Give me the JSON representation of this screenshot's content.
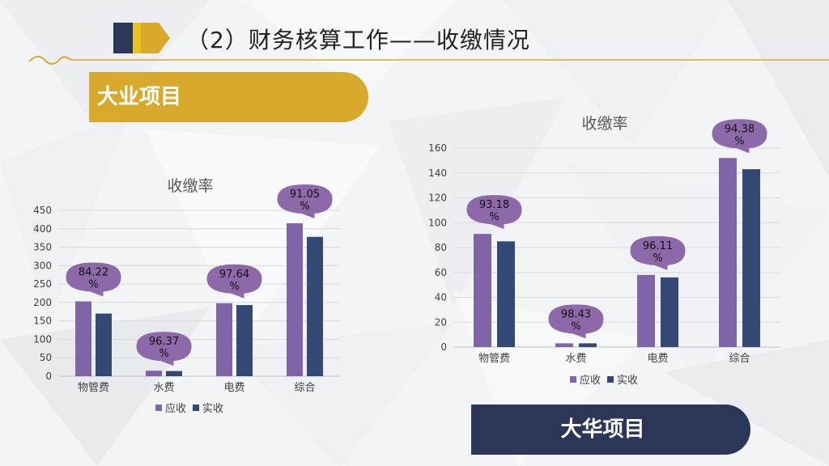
{
  "page": {
    "title": "（2）财务核算工作——收缴情况",
    "colors": {
      "gold": "#d9a92b",
      "navy": "#2b3659",
      "purple": "#8064a8",
      "bar_navy": "#344874",
      "bubble": "#8e69a9"
    }
  },
  "left_panel": {
    "banner": "大业项目"
  },
  "right_panel": {
    "banner": "大华项目"
  },
  "chart_data": [
    {
      "type": "bar",
      "title": "收缴率",
      "categories": [
        "物管费",
        "水费",
        "电费",
        "综合"
      ],
      "series": [
        {
          "name": "应收",
          "values": [
            203,
            15,
            198,
            415
          ]
        },
        {
          "name": "实收",
          "values": [
            170,
            14,
            193,
            378
          ]
        }
      ],
      "ylim": [
        0,
        450
      ],
      "yticks": [
        0,
        50,
        100,
        150,
        200,
        250,
        300,
        350,
        400,
        450
      ],
      "rates": [
        {
          "line1": "84.22",
          "line2": "%"
        },
        {
          "line1": "96.37",
          "line2": "%"
        },
        {
          "line1": "97.64",
          "line2": "%"
        },
        {
          "line1": "91.05",
          "line2": "%"
        }
      ],
      "legend": [
        "应收",
        "实收"
      ],
      "legend_position": "bottom"
    },
    {
      "type": "bar",
      "title": "收缴率",
      "categories": [
        "物管费",
        "水费",
        "电费",
        "综合"
      ],
      "series": [
        {
          "name": "应收",
          "values": [
            91,
            3,
            58,
            152
          ]
        },
        {
          "name": "实收",
          "values": [
            85,
            3,
            56,
            143
          ]
        }
      ],
      "ylim": [
        0,
        160
      ],
      "yticks": [
        0,
        20,
        40,
        60,
        80,
        100,
        120,
        140,
        160
      ],
      "rates": [
        {
          "line1": "93.18",
          "line2": "%"
        },
        {
          "line1": "98.43",
          "line2": "%"
        },
        {
          "line1": "96.11",
          "line2": "%"
        },
        {
          "line1": "94.38",
          "line2": "%"
        }
      ],
      "legend": [
        "应收",
        "实收"
      ],
      "legend_position": "bottom"
    }
  ]
}
